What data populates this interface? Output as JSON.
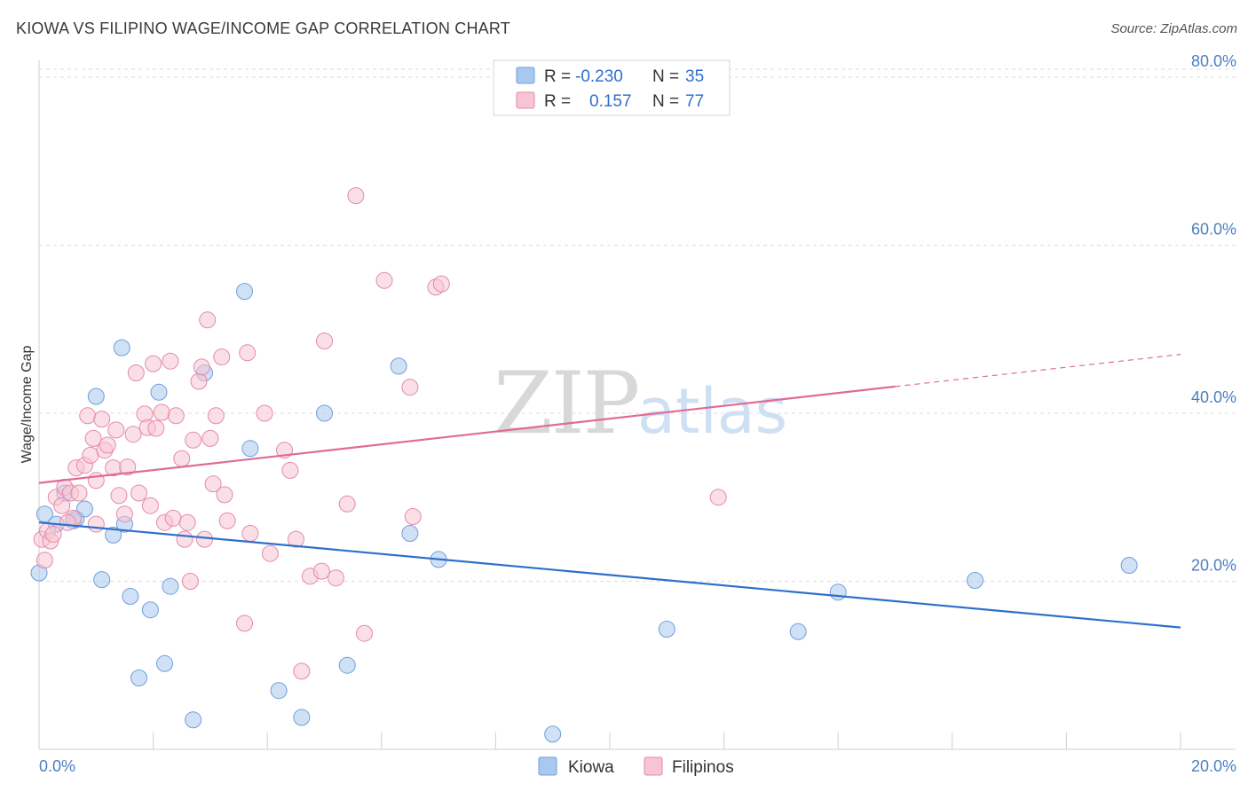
{
  "title": "KIOWA VS FILIPINO WAGE/INCOME GAP CORRELATION CHART",
  "source": "Source: ZipAtlas.com",
  "watermark": {
    "zip": "ZIP",
    "atlas": "atlas"
  },
  "legend": {
    "rows": [
      {
        "r_label": "R =",
        "r_value": "-0.230",
        "n_label": "N =",
        "n_value": "35",
        "color": "#a9c8ef",
        "border": "#6f9fdc"
      },
      {
        "r_label": "R =",
        "r_value": "0.157",
        "n_label": "N =",
        "n_value": "77",
        "color": "#f7c4d4",
        "border": "#e48aa8"
      }
    ]
  },
  "bottom_legend": [
    {
      "label": "Kiowa",
      "color": "#a9c8ef",
      "border": "#6f9fdc"
    },
    {
      "label": "Filipinos",
      "color": "#f7c4d4",
      "border": "#e48aa8"
    }
  ],
  "chart_data": {
    "type": "scatter",
    "ylabel": "Wage/Income Gap",
    "xlim": [
      0,
      20
    ],
    "ylim": [
      0,
      82
    ],
    "x_tick_labels": [
      "0.0%",
      "20.0%"
    ],
    "y_ticks": [
      20,
      40,
      60,
      80
    ],
    "y_tick_labels": [
      "20.0%",
      "40.0%",
      "60.0%",
      "80.0%"
    ],
    "grid": true,
    "series": [
      {
        "name": "Kiowa",
        "color": "#6f9fdc",
        "fill": "#a9c8ef",
        "trend": {
          "x": [
            0,
            20
          ],
          "y": [
            27.0,
            14.5
          ],
          "color": "#2f6fcc",
          "dashed_from": null
        },
        "points": [
          [
            0.1,
            28.0
          ],
          [
            0.3,
            26.8
          ],
          [
            0.45,
            30.5
          ],
          [
            0.6,
            27.2
          ],
          [
            0.65,
            27.4
          ],
          [
            0.8,
            28.6
          ],
          [
            1.0,
            42.0
          ],
          [
            1.1,
            20.2
          ],
          [
            1.3,
            25.5
          ],
          [
            1.45,
            47.8
          ],
          [
            1.5,
            26.8
          ],
          [
            1.6,
            18.2
          ],
          [
            1.75,
            8.5
          ],
          [
            1.95,
            16.6
          ],
          [
            2.1,
            42.5
          ],
          [
            2.2,
            10.2
          ],
          [
            2.3,
            19.4
          ],
          [
            2.7,
            3.5
          ],
          [
            2.9,
            44.8
          ],
          [
            3.6,
            54.5
          ],
          [
            3.7,
            35.8
          ],
          [
            4.2,
            7.0
          ],
          [
            4.6,
            3.8
          ],
          [
            5.0,
            40.0
          ],
          [
            5.4,
            10.0
          ],
          [
            6.3,
            45.6
          ],
          [
            6.5,
            25.7
          ],
          [
            7.0,
            22.6
          ],
          [
            9.0,
            1.8
          ],
          [
            11.0,
            14.3
          ],
          [
            13.3,
            14.0
          ],
          [
            14.0,
            18.7
          ],
          [
            16.4,
            20.1
          ],
          [
            19.1,
            21.9
          ],
          [
            0.0,
            21.0
          ]
        ]
      },
      {
        "name": "Filipinos",
        "color": "#e48aa8",
        "fill": "#f7c4d4",
        "trend": {
          "x": [
            0,
            20
          ],
          "y": [
            31.7,
            47.0
          ],
          "color": "#e06b95",
          "dashed_from": 15.0
        },
        "points": [
          [
            0.05,
            25.0
          ],
          [
            0.1,
            22.5
          ],
          [
            0.15,
            26.0
          ],
          [
            0.3,
            30.0
          ],
          [
            0.4,
            29.0
          ],
          [
            0.45,
            31.2
          ],
          [
            0.55,
            30.5
          ],
          [
            0.6,
            27.5
          ],
          [
            0.65,
            33.5
          ],
          [
            0.7,
            30.5
          ],
          [
            0.8,
            33.8
          ],
          [
            0.85,
            39.7
          ],
          [
            0.9,
            35.0
          ],
          [
            0.95,
            37.0
          ],
          [
            1.0,
            32.0
          ],
          [
            1.1,
            39.3
          ],
          [
            1.15,
            35.6
          ],
          [
            1.2,
            36.2
          ],
          [
            1.3,
            33.5
          ],
          [
            1.35,
            38.0
          ],
          [
            1.4,
            30.2
          ],
          [
            1.5,
            28.0
          ],
          [
            1.55,
            33.6
          ],
          [
            1.65,
            37.5
          ],
          [
            1.7,
            44.8
          ],
          [
            1.75,
            30.5
          ],
          [
            1.85,
            39.9
          ],
          [
            1.9,
            38.3
          ],
          [
            1.95,
            29.0
          ],
          [
            2.05,
            38.2
          ],
          [
            2.0,
            45.9
          ],
          [
            2.15,
            40.1
          ],
          [
            2.2,
            27.0
          ],
          [
            2.3,
            46.2
          ],
          [
            2.35,
            27.5
          ],
          [
            2.4,
            39.7
          ],
          [
            2.5,
            34.6
          ],
          [
            2.55,
            25.0
          ],
          [
            2.6,
            27.0
          ],
          [
            2.65,
            20.0
          ],
          [
            2.7,
            36.8
          ],
          [
            2.8,
            43.8
          ],
          [
            2.85,
            45.5
          ],
          [
            2.9,
            25.0
          ],
          [
            2.95,
            51.1
          ],
          [
            3.0,
            37.0
          ],
          [
            3.05,
            31.6
          ],
          [
            3.1,
            39.7
          ],
          [
            3.2,
            46.7
          ],
          [
            3.25,
            30.3
          ],
          [
            3.3,
            27.2
          ],
          [
            3.6,
            15.0
          ],
          [
            3.65,
            47.2
          ],
          [
            3.7,
            25.7
          ],
          [
            3.95,
            40.0
          ],
          [
            4.05,
            23.3
          ],
          [
            4.3,
            35.6
          ],
          [
            4.4,
            33.2
          ],
          [
            4.5,
            25.0
          ],
          [
            4.6,
            9.3
          ],
          [
            4.75,
            20.6
          ],
          [
            4.95,
            21.2
          ],
          [
            5.0,
            48.6
          ],
          [
            5.2,
            20.4
          ],
          [
            5.4,
            29.2
          ],
          [
            5.55,
            65.9
          ],
          [
            5.7,
            13.8
          ],
          [
            6.05,
            55.8
          ],
          [
            6.5,
            43.1
          ],
          [
            6.55,
            27.7
          ],
          [
            6.95,
            55.0
          ],
          [
            7.05,
            55.4
          ],
          [
            11.9,
            30.0
          ],
          [
            0.2,
            24.8
          ],
          [
            0.25,
            25.6
          ],
          [
            1.0,
            26.8
          ],
          [
            0.5,
            27.0
          ]
        ]
      }
    ]
  }
}
